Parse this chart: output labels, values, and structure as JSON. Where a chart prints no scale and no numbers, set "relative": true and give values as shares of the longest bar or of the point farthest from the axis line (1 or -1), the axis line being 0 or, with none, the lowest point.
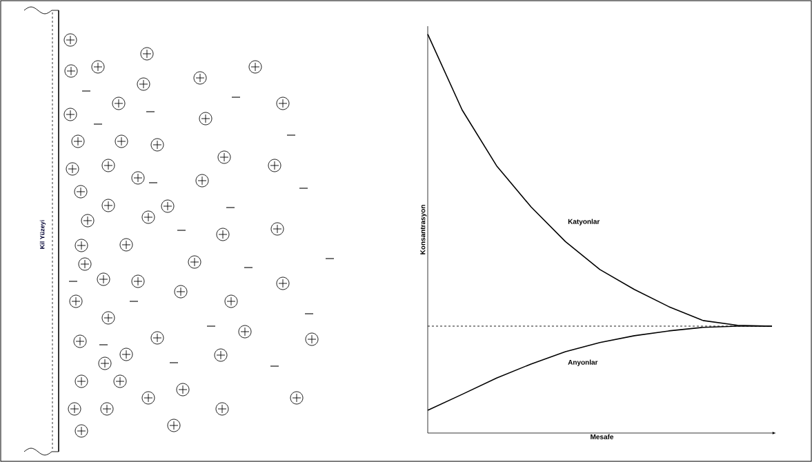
{
  "chart_data": [
    {
      "type": "other",
      "annotations": [
        "Kil Yüzeyi"
      ]
    },
    {
      "type": "line",
      "relative": true,
      "xlabel": "Mesafe",
      "ylabel": "Konsantrasyon",
      "marker": "none",
      "categories": [
        null,
        null,
        null,
        null,
        null,
        null,
        null,
        null,
        null,
        null,
        null
      ],
      "series": [
        {
          "name": "Katyonlar",
          "color": "#000000",
          "values": [
            1.0,
            0.81,
            0.67,
            0.567,
            0.48,
            0.41,
            0.36,
            0.317,
            0.282,
            0.27,
            0.268
          ]
        },
        {
          "name": "Anyonlar",
          "color": "#000000",
          "values": [
            0.057,
            0.097,
            0.138,
            0.173,
            0.204,
            0.227,
            0.244,
            0.256,
            0.265,
            0.268,
            0.268
          ]
        }
      ],
      "ref_lines": [
        {
          "axis": "y",
          "value": 0.268,
          "line_style": "dashed",
          "color": "#000000"
        }
      ]
    }
  ]
}
